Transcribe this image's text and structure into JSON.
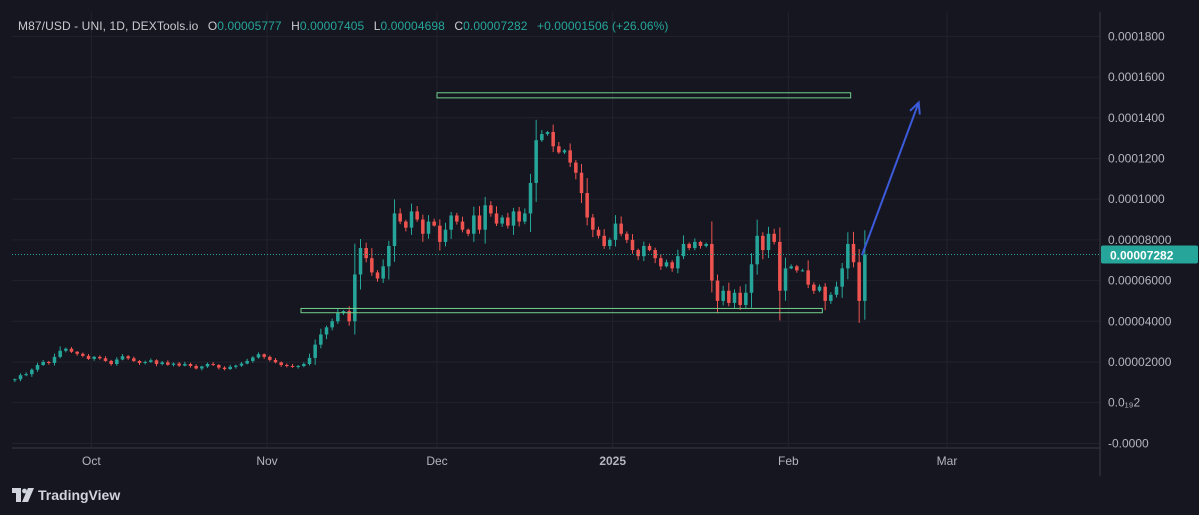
{
  "legend": {
    "symbol": "M87/USD - UNI, 1D, DEXTools.io",
    "open_key": "O",
    "open": "0.00005777",
    "high_key": "H",
    "high": "0.00007405",
    "low_key": "L",
    "low": "0.00004698",
    "close_key": "C",
    "close": "0.00007282",
    "change": "+0.00001506 (+26.06%)"
  },
  "brand": {
    "name": "TradingView"
  },
  "colors": {
    "background": "#161620",
    "grid": "#22222c",
    "up": "#26a69a",
    "down": "#ef5350",
    "axis_text": "#b2b5be",
    "zone": "#6fd08c",
    "arrow": "#3b5bdb",
    "last_price_bg": "#26a69a"
  },
  "chart_data": {
    "type": "candlestick",
    "interval": "1D",
    "y_ticks": [
      "0.0001800",
      "0.0001600",
      "0.0001400",
      "0.0001200",
      "0.0001000",
      "0.00008000",
      "0.00006000",
      "0.00004000",
      "0.00002000",
      "0.0₁₉2",
      "-0.0000"
    ],
    "y_tick_values": [
      0.00018,
      0.00016,
      0.00014,
      0.00012,
      0.0001,
      8e-05,
      6e-05,
      4e-05,
      2e-05,
      0.0,
      -2e-05
    ],
    "ylim": [
      -2.18e-05,
      0.000192
    ],
    "x_ticks": [
      "Oct",
      "Nov",
      "Dec",
      "2025",
      "Feb",
      "Mar"
    ],
    "x_tick_days": [
      0,
      31,
      61,
      92,
      123,
      151
    ],
    "x_start_day": -14,
    "x_end_day": 178,
    "last_price": "0.00007282",
    "last_price_value": 7.282e-05,
    "closes": [
      1.15e-05,
      1.35e-05,
      1.4e-05,
      1.62e-05,
      1.85e-05,
      2e-05,
      1.95e-05,
      2.25e-05,
      2.55e-05,
      2.65e-05,
      2.5e-05,
      2.4e-05,
      2.3e-05,
      2.15e-05,
      2.25e-05,
      2.18e-05,
      2.05e-05,
      1.9e-05,
      2.12e-05,
      2.28e-05,
      2.18e-05,
      2.05e-05,
      1.95e-05,
      2e-05,
      2.08e-05,
      1.9e-05,
      1.98e-05,
      1.86e-05,
      1.92e-05,
      1.82e-05,
      1.9e-05,
      1.8e-05,
      1.68e-05,
      1.78e-05,
      1.9e-05,
      1.85e-05,
      1.72e-05,
      1.65e-05,
      1.76e-05,
      1.82e-05,
      1.92e-05,
      2.05e-05,
      2.22e-05,
      2.38e-05,
      2.25e-05,
      2.1e-05,
      1.98e-05,
      1.85e-05,
      1.8e-05,
      1.76e-05,
      1.8e-05,
      1.9e-05,
      2.2e-05,
      2.85e-05,
      3.35e-05,
      3.7e-05,
      4e-05,
      4.4e-05,
      4.5e-05,
      4e-05,
      6.3e-05,
      7.6e-05,
      7.1e-05,
      6.4e-05,
      6.1e-05,
      6.7e-05,
      7.7e-05,
      9.3e-05,
      8.9e-05,
      8.6e-05,
      9.4e-05,
      9e-05,
      8.3e-05,
      8.9e-05,
      8.7e-05,
      7.9e-05,
      8.5e-05,
      9.2e-05,
      8.9e-05,
      8.5e-05,
      8.3e-05,
      9.2e-05,
      8.5e-05,
      9.7e-05,
      9.3e-05,
      8.8e-05,
      9.1e-05,
      8.7e-05,
      9.4e-05,
      8.9e-05,
      9.3e-05,
      0.000108,
      0.000129,
      0.000132,
      0.000133,
      0.000126,
      0.000123,
      0.000124,
      0.000118,
      0.000113,
      0.000103,
      9.1e-05,
      8.5e-05,
      8.2e-05,
      7.7e-05,
      8e-05,
      8.8e-05,
      8.3e-05,
      8e-05,
      7.5e-05,
      7.2e-05,
      7.7e-05,
      7.5e-05,
      7.1e-05,
      6.7e-05,
      6.9e-05,
      6.6e-05,
      7.2e-05,
      7.8e-05,
      7.6e-05,
      7.9e-05,
      7.7e-05,
      7.8e-05,
      6e-05,
      5e-05,
      5.5e-05,
      4.9e-05,
      5.4e-05,
      4.8e-05,
      5.4e-05,
      6.8e-05,
      8.2e-05,
      7.5e-05,
      8.3e-05,
      7.9e-05,
      5.5e-05,
      6.6e-05,
      6.7e-05,
      6.5e-05,
      6.5e-05,
      5.8e-05,
      5.5e-05,
      5.7e-05,
      5e-05,
      5.3e-05,
      5.7e-05,
      6.6e-05,
      7.8e-05,
      6.9e-05,
      5e-05,
      7.282e-05
    ],
    "annotations": {
      "upper_zone": {
        "price_top": 0.0001523,
        "price_bottom": 0.0001498,
        "start_day": 61,
        "end_day": 134
      },
      "lower_zone": {
        "price_top": 4.63e-05,
        "price_bottom": 4.42e-05,
        "start_day": 37,
        "end_day": 129
      },
      "arrow": {
        "from_day": 136,
        "from_price": 7.25e-05,
        "to_day": 146,
        "to_price": 0.0001475
      }
    }
  }
}
